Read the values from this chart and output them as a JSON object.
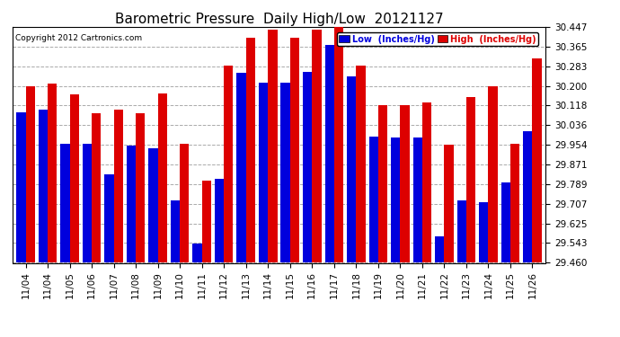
{
  "title": "Barometric Pressure  Daily High/Low  20121127",
  "copyright": "Copyright 2012 Cartronics.com",
  "legend_low": "Low  (Inches/Hg)",
  "legend_high": "High  (Inches/Hg)",
  "ylabel_right_ticks": [
    29.46,
    29.543,
    29.625,
    29.707,
    29.789,
    29.871,
    29.954,
    30.036,
    30.118,
    30.2,
    30.283,
    30.365,
    30.447
  ],
  "dates": [
    "11/04",
    "11/04",
    "11/05",
    "11/06",
    "11/07",
    "11/08",
    "11/09",
    "11/10",
    "11/11",
    "11/12",
    "11/13",
    "11/14",
    "11/15",
    "11/16",
    "11/17",
    "11/18",
    "11/19",
    "11/20",
    "11/21",
    "11/22",
    "11/23",
    "11/24",
    "11/25",
    "11/26"
  ],
  "low_values": [
    30.09,
    30.1,
    29.96,
    29.96,
    29.83,
    29.95,
    29.94,
    29.72,
    29.54,
    29.81,
    30.255,
    30.215,
    30.215,
    30.26,
    30.37,
    30.24,
    29.99,
    29.985,
    29.985,
    29.57,
    29.72,
    29.715,
    29.795,
    30.01
  ],
  "high_values": [
    30.2,
    30.21,
    30.165,
    30.085,
    30.1,
    30.085,
    30.17,
    29.96,
    29.805,
    30.285,
    30.4,
    30.435,
    30.4,
    30.435,
    30.447,
    30.285,
    30.12,
    30.12,
    30.13,
    29.955,
    30.155,
    30.2,
    29.96,
    30.315
  ],
  "ymin": 29.46,
  "ymax": 30.447,
  "bar_width": 0.42,
  "blue_color": "#0000dd",
  "red_color": "#dd0000",
  "bg_color": "#ffffff",
  "grid_color": "#aaaaaa",
  "title_fontsize": 11,
  "tick_fontsize": 7.5,
  "copyright_fontsize": 6.5
}
